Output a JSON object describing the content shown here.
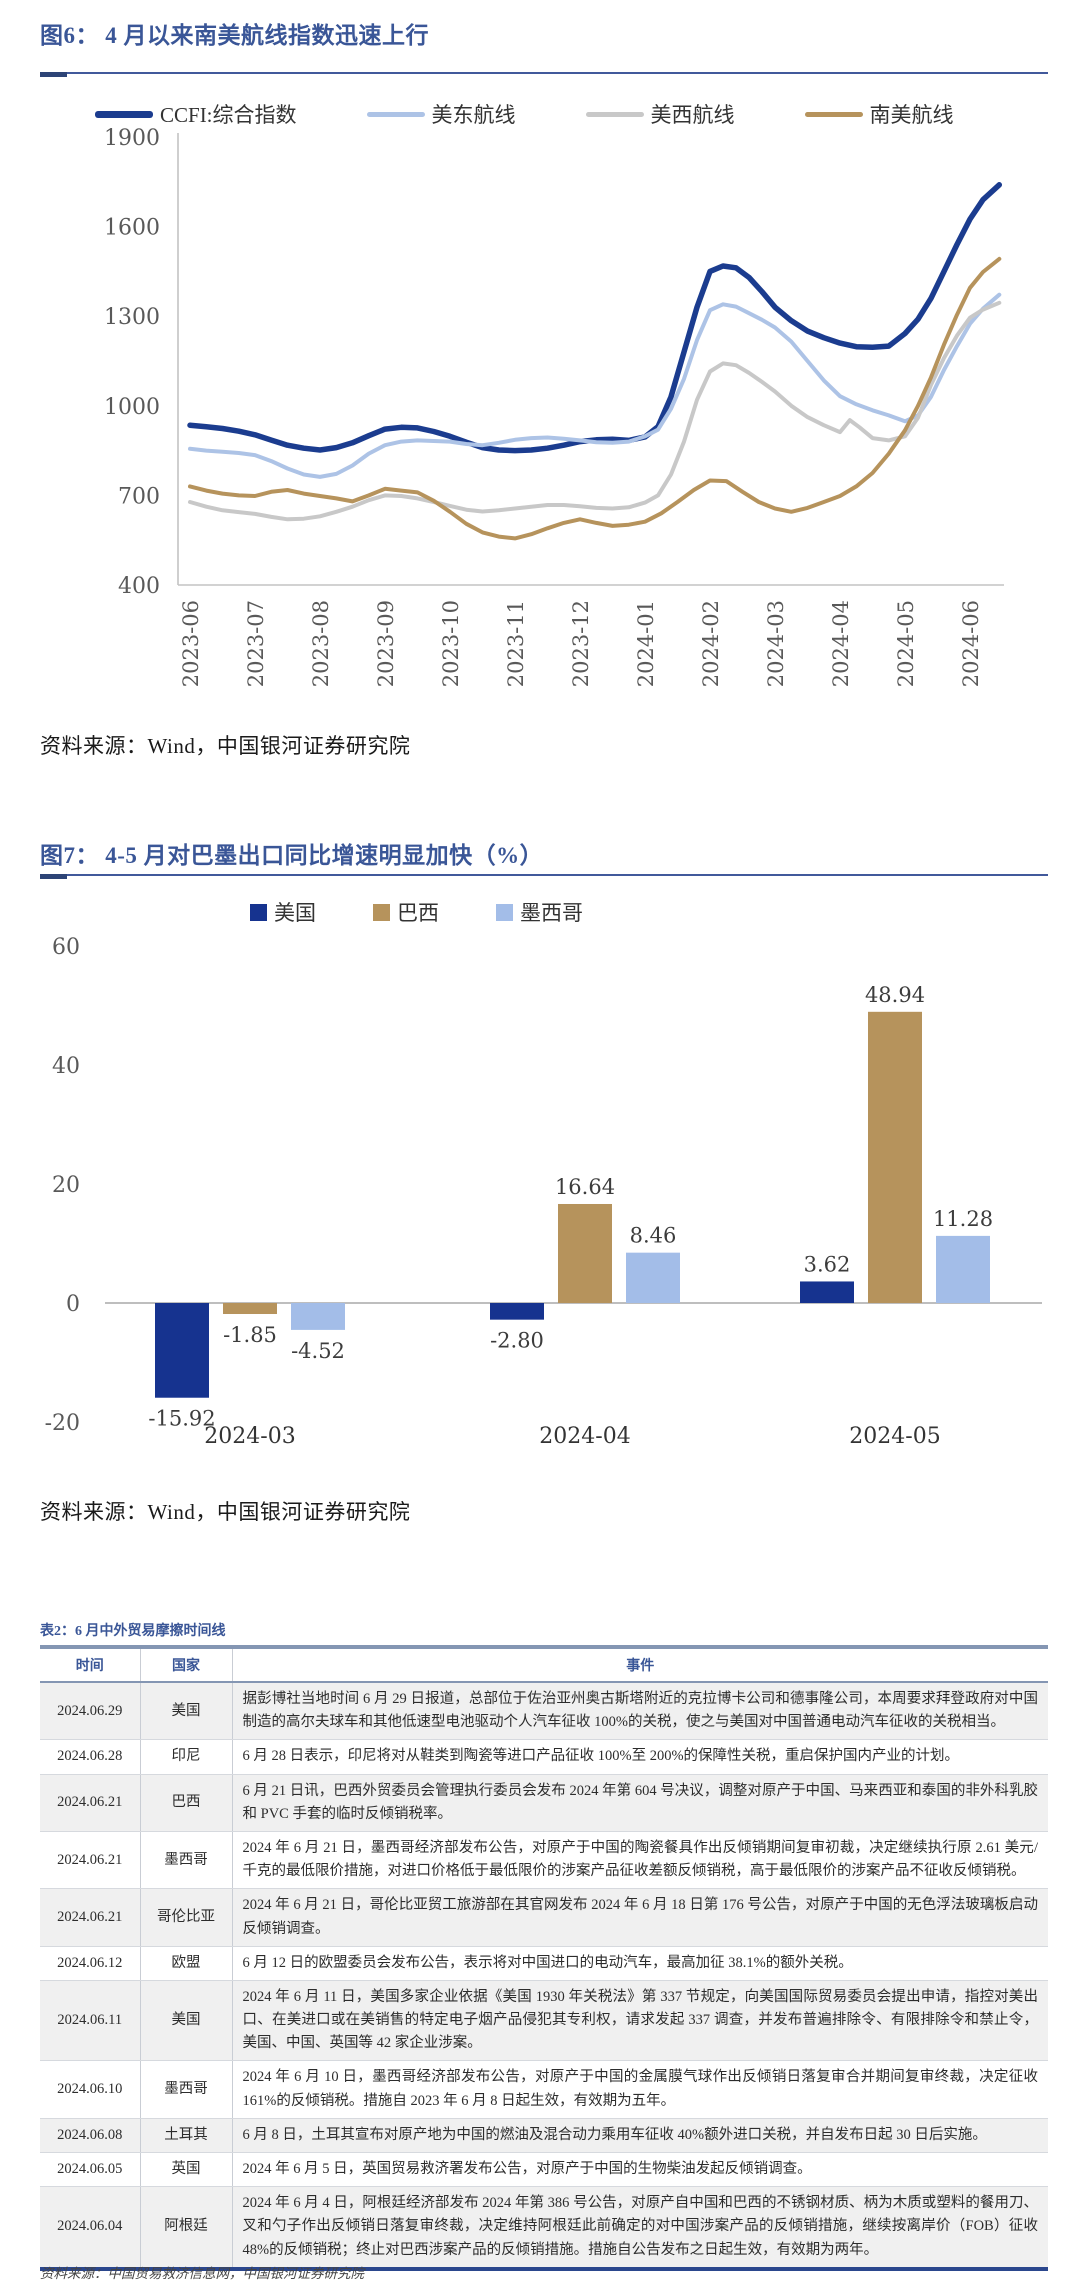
{
  "fig6": {
    "title": "图6： 4 月以来南美航线指数迅速上行",
    "source": "资料来源：Wind，中国银河证券研究院",
    "chart_data": {
      "type": "line",
      "title": "4月以来南美航线指数迅速上行",
      "ylim": [
        400,
        1900
      ],
      "yticks": [
        1900,
        1600,
        1300,
        1000,
        700,
        400
      ],
      "x_ticklabels": [
        "2023-06",
        "2023-07",
        "2023-08",
        "2023-09",
        "2023-10",
        "2023-11",
        "2023-12",
        "2024-01",
        "2024-02",
        "2024-03",
        "2024-04",
        "2024-05",
        "2024-06"
      ],
      "x_unit": "months since 2023-06",
      "grid": false,
      "legend_position": "top",
      "series": [
        {
          "name": "CCFI:综合指数",
          "color": "#1b3c8f",
          "width": 5.5,
          "points": [
            [
              0,
              935
            ],
            [
              0.25,
              930
            ],
            [
              0.5,
              924
            ],
            [
              0.75,
              915
            ],
            [
              1,
              903
            ],
            [
              1.25,
              885
            ],
            [
              1.5,
              868
            ],
            [
              1.75,
              858
            ],
            [
              2,
              852
            ],
            [
              2.25,
              860
            ],
            [
              2.5,
              876
            ],
            [
              2.75,
              900
            ],
            [
              3,
              922
            ],
            [
              3.25,
              928
            ],
            [
              3.5,
              926
            ],
            [
              3.75,
              914
            ],
            [
              4,
              898
            ],
            [
              4.25,
              878
            ],
            [
              4.5,
              860
            ],
            [
              4.75,
              852
            ],
            [
              5,
              850
            ],
            [
              5.25,
              852
            ],
            [
              5.5,
              858
            ],
            [
              5.75,
              868
            ],
            [
              6,
              880
            ],
            [
              6.25,
              886
            ],
            [
              6.5,
              888
            ],
            [
              6.75,
              884
            ],
            [
              7,
              896
            ],
            [
              7.2,
              930
            ],
            [
              7.4,
              1030
            ],
            [
              7.6,
              1180
            ],
            [
              7.8,
              1330
            ],
            [
              8,
              1450
            ],
            [
              8.2,
              1468
            ],
            [
              8.4,
              1462
            ],
            [
              8.6,
              1430
            ],
            [
              8.8,
              1382
            ],
            [
              9,
              1330
            ],
            [
              9.25,
              1285
            ],
            [
              9.5,
              1250
            ],
            [
              9.75,
              1228
            ],
            [
              10,
              1210
            ],
            [
              10.25,
              1198
            ],
            [
              10.5,
              1196
            ],
            [
              10.75,
              1200
            ],
            [
              11,
              1242
            ],
            [
              11.2,
              1290
            ],
            [
              11.4,
              1360
            ],
            [
              11.6,
              1450
            ],
            [
              11.8,
              1540
            ],
            [
              12,
              1625
            ],
            [
              12.2,
              1690
            ],
            [
              12.45,
              1740
            ]
          ]
        },
        {
          "name": "美东航线",
          "color": "#adc3e6",
          "width": 4,
          "points": [
            [
              0,
              856
            ],
            [
              0.25,
              850
            ],
            [
              0.5,
              846
            ],
            [
              0.75,
              842
            ],
            [
              1,
              835
            ],
            [
              1.25,
              815
            ],
            [
              1.5,
              790
            ],
            [
              1.75,
              770
            ],
            [
              2,
              762
            ],
            [
              2.25,
              772
            ],
            [
              2.5,
              800
            ],
            [
              2.75,
              840
            ],
            [
              3,
              868
            ],
            [
              3.25,
              880
            ],
            [
              3.5,
              884
            ],
            [
              3.75,
              882
            ],
            [
              4,
              880
            ],
            [
              4.25,
              872
            ],
            [
              4.5,
              868
            ],
            [
              4.75,
              876
            ],
            [
              5,
              886
            ],
            [
              5.25,
              892
            ],
            [
              5.5,
              894
            ],
            [
              5.75,
              890
            ],
            [
              6,
              884
            ],
            [
              6.25,
              878
            ],
            [
              6.5,
              876
            ],
            [
              6.75,
              880
            ],
            [
              7,
              898
            ],
            [
              7.2,
              920
            ],
            [
              7.4,
              990
            ],
            [
              7.6,
              1090
            ],
            [
              7.8,
              1220
            ],
            [
              8,
              1320
            ],
            [
              8.2,
              1340
            ],
            [
              8.4,
              1332
            ],
            [
              8.6,
              1310
            ],
            [
              8.8,
              1288
            ],
            [
              9,
              1262
            ],
            [
              9.25,
              1215
            ],
            [
              9.5,
              1150
            ],
            [
              9.75,
              1085
            ],
            [
              10,
              1032
            ],
            [
              10.25,
              1005
            ],
            [
              10.5,
              985
            ],
            [
              10.75,
              968
            ],
            [
              11,
              948
            ],
            [
              11.2,
              968
            ],
            [
              11.4,
              1030
            ],
            [
              11.6,
              1120
            ],
            [
              11.8,
              1200
            ],
            [
              12,
              1275
            ],
            [
              12.2,
              1325
            ],
            [
              12.45,
              1372
            ]
          ]
        },
        {
          "name": "美西航线",
          "color": "#c8c8c8",
          "width": 4,
          "points": [
            [
              0,
              678
            ],
            [
              0.25,
              662
            ],
            [
              0.5,
              650
            ],
            [
              0.75,
              644
            ],
            [
              1,
              638
            ],
            [
              1.25,
              628
            ],
            [
              1.5,
              620
            ],
            [
              1.75,
              622
            ],
            [
              2,
              630
            ],
            [
              2.25,
              645
            ],
            [
              2.5,
              662
            ],
            [
              2.75,
              684
            ],
            [
              3,
              700
            ],
            [
              3.25,
              698
            ],
            [
              3.5,
              690
            ],
            [
              3.75,
              678
            ],
            [
              4,
              665
            ],
            [
              4.25,
              652
            ],
            [
              4.5,
              646
            ],
            [
              4.75,
              650
            ],
            [
              5,
              656
            ],
            [
              5.25,
              662
            ],
            [
              5.5,
              668
            ],
            [
              5.75,
              668
            ],
            [
              6,
              664
            ],
            [
              6.25,
              658
            ],
            [
              6.5,
              656
            ],
            [
              6.75,
              660
            ],
            [
              7,
              676
            ],
            [
              7.2,
              700
            ],
            [
              7.4,
              770
            ],
            [
              7.6,
              880
            ],
            [
              7.8,
              1020
            ],
            [
              8,
              1115
            ],
            [
              8.2,
              1142
            ],
            [
              8.4,
              1136
            ],
            [
              8.6,
              1110
            ],
            [
              8.8,
              1080
            ],
            [
              9,
              1048
            ],
            [
              9.25,
              1000
            ],
            [
              9.5,
              962
            ],
            [
              9.75,
              935
            ],
            [
              10,
              912
            ],
            [
              10.15,
              952
            ],
            [
              10.3,
              928
            ],
            [
              10.5,
              892
            ],
            [
              10.75,
              884
            ],
            [
              11,
              898
            ],
            [
              11.2,
              960
            ],
            [
              11.4,
              1070
            ],
            [
              11.6,
              1160
            ],
            [
              11.8,
              1235
            ],
            [
              12,
              1295
            ],
            [
              12.2,
              1322
            ],
            [
              12.45,
              1345
            ]
          ]
        },
        {
          "name": "南美航线",
          "color": "#b6935c",
          "width": 4,
          "points": [
            [
              0,
              730
            ],
            [
              0.25,
              716
            ],
            [
              0.5,
              706
            ],
            [
              0.75,
              700
            ],
            [
              1,
              698
            ],
            [
              1.25,
              712
            ],
            [
              1.5,
              718
            ],
            [
              1.75,
              706
            ],
            [
              2,
              698
            ],
            [
              2.25,
              690
            ],
            [
              2.5,
              680
            ],
            [
              2.75,
              700
            ],
            [
              3,
              722
            ],
            [
              3.25,
              716
            ],
            [
              3.5,
              710
            ],
            [
              3.75,
              682
            ],
            [
              4,
              645
            ],
            [
              4.25,
              605
            ],
            [
              4.5,
              576
            ],
            [
              4.75,
              562
            ],
            [
              5,
              556
            ],
            [
              5.25,
              570
            ],
            [
              5.5,
              590
            ],
            [
              5.75,
              608
            ],
            [
              6,
              620
            ],
            [
              6.25,
              608
            ],
            [
              6.5,
              598
            ],
            [
              6.75,
              602
            ],
            [
              7,
              612
            ],
            [
              7.25,
              640
            ],
            [
              7.5,
              678
            ],
            [
              7.75,
              718
            ],
            [
              8,
              750
            ],
            [
              8.25,
              748
            ],
            [
              8.5,
              712
            ],
            [
              8.75,
              678
            ],
            [
              9,
              656
            ],
            [
              9.25,
              645
            ],
            [
              9.5,
              658
            ],
            [
              9.75,
              678
            ],
            [
              10,
              698
            ],
            [
              10.25,
              730
            ],
            [
              10.5,
              775
            ],
            [
              10.75,
              840
            ],
            [
              11,
              918
            ],
            [
              11.2,
              1000
            ],
            [
              11.4,
              1095
            ],
            [
              11.6,
              1205
            ],
            [
              11.8,
              1305
            ],
            [
              12,
              1395
            ],
            [
              12.2,
              1448
            ],
            [
              12.45,
              1492
            ]
          ]
        }
      ]
    }
  },
  "fig7": {
    "title": "图7： 4-5 月对巴墨出口同比增速明显加快（%）",
    "source": "资料来源：Wind，中国银河证券研究院",
    "chart_data": {
      "type": "bar",
      "categories": [
        "2024-03",
        "2024-04",
        "2024-05"
      ],
      "series": [
        {
          "name": "美国",
          "color": "#16338f",
          "values": [
            -15.92,
            -2.8,
            3.62
          ]
        },
        {
          "name": "巴西",
          "color": "#b6935c",
          "values": [
            -1.85,
            16.64,
            48.94
          ]
        },
        {
          "name": "墨西哥",
          "color": "#a3bde8",
          "values": [
            -4.52,
            8.46,
            11.28
          ]
        }
      ],
      "ylim": [
        -20,
        60
      ],
      "yticks": [
        60,
        40,
        20,
        0,
        -20
      ],
      "unit": "%",
      "grid": false,
      "legend_position": "top",
      "data_labels": [
        "-15.92",
        "-1.85",
        "-4.52",
        "-2.80",
        "16.64",
        "8.46",
        "3.62",
        "48.94",
        "11.28"
      ]
    }
  },
  "table2": {
    "title": "表2：6 月中外贸易摩擦时间线",
    "columns": [
      "时间",
      "国家",
      "事件"
    ],
    "source": "资料来源：中国贸易救济信息网，中国银河证券研究院",
    "rows": [
      {
        "date": "2024.06.29",
        "country": "美国",
        "event": "据彭博社当地时间 6 月 29 日报道，总部位于佐治亚州奥古斯塔附近的克拉博卡公司和德事隆公司，本周要求拜登政府对中国制造的高尔夫球车和其他低速型电池驱动个人汽车征收 100%的关税，使之与美国对中国普通电动汽车征收的关税相当。"
      },
      {
        "date": "2024.06.28",
        "country": "印尼",
        "event": "6 月 28 日表示，印尼将对从鞋类到陶瓷等进口产品征收 100%至 200%的保障性关税，重启保护国内产业的计划。"
      },
      {
        "date": "2024.06.21",
        "country": "巴西",
        "event": "6 月 21 日讯，巴西外贸委员会管理执行委员会发布 2024 年第 604 号决议，调整对原产于中国、马来西亚和泰国的非外科乳胶和 PVC 手套的临时反倾销税率。"
      },
      {
        "date": "2024.06.21",
        "country": "墨西哥",
        "event": "2024 年 6 月 21 日，墨西哥经济部发布公告，对原产于中国的陶瓷餐具作出反倾销期间复审初裁，决定继续执行原 2.61 美元/千克的最低限价措施，对进口价格低于最低限价的涉案产品征收差额反倾销税，高于最低限价的涉案产品不征收反倾销税。"
      },
      {
        "date": "2024.06.21",
        "country": "哥伦比亚",
        "event": "2024 年 6 月 21 日，哥伦比亚贸工旅游部在其官网发布 2024 年 6 月 18 日第 176 号公告，对原产于中国的无色浮法玻璃板启动反倾销调查。"
      },
      {
        "date": "2024.06.12",
        "country": "欧盟",
        "event": "6 月 12 日的欧盟委员会发布公告，表示将对中国进口的电动汽车，最高加征 38.1%的额外关税。"
      },
      {
        "date": "2024.06.11",
        "country": "美国",
        "event": "2024 年 6 月 11 日，美国多家企业依据《美国 1930 年关税法》第 337 节规定，向美国国际贸易委员会提出申请，指控对美出口、在美进口或在美销售的特定电子烟产品侵犯其专利权，请求发起 337 调查，并发布普遍排除令、有限排除令和禁止令，美国、中国、英国等 42 家企业涉案。"
      },
      {
        "date": "2024.06.10",
        "country": "墨西哥",
        "event": "2024 年 6 月 10 日，墨西哥经济部发布公告，对原产于中国的金属膜气球作出反倾销日落复审合并期间复审终裁，决定征收 161%的反倾销税。措施自 2023 年 6 月 8 日起生效，有效期为五年。"
      },
      {
        "date": "2024.06.08",
        "country": "土耳其",
        "event": "6 月 8 日，土耳其宣布对原产地为中国的燃油及混合动力乘用车征收 40%额外进口关税，并自发布日起 30 日后实施。"
      },
      {
        "date": "2024.06.05",
        "country": "英国",
        "event": "2024 年 6 月 5 日，英国贸易救济署发布公告，对原产于中国的生物柴油发起反倾销调查。"
      },
      {
        "date": "2024.06.04",
        "country": "阿根廷",
        "event": "2024 年 6 月 4 日，阿根廷经济部发布 2024 年第 386 号公告，对原产自中国和巴西的不锈钢材质、柄为木质或塑料的餐用刀、叉和勺子作出反倾销日落复审终裁，决定维持阿根廷此前确定的对中国涉案产品的反倾销措施，继续按离岸价（FOB）征收 48%的反倾销税；终止对巴西涉案产品的反倾销措施。措施自公告发布之日起生效，有效期为两年。"
      }
    ]
  }
}
